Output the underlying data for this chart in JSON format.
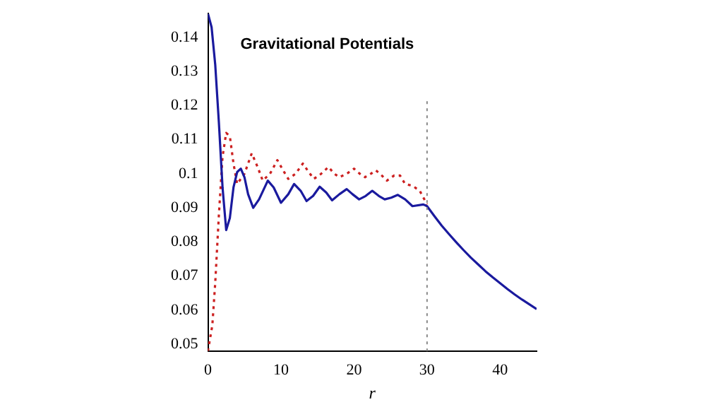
{
  "chart_data": {
    "type": "line",
    "title": "Gravitational Potentials",
    "xlabel": "r",
    "xlim": [
      0,
      45
    ],
    "ylim": [
      0.048,
      0.147
    ],
    "xticks": [
      0,
      10,
      20,
      30,
      40
    ],
    "yticks": [
      0.05,
      0.06,
      0.07,
      0.08,
      0.09,
      0.1,
      0.11,
      0.12,
      0.13,
      0.14
    ],
    "grid": false,
    "legend": false,
    "marker": "none",
    "series": [
      {
        "color": "#1a1a9e",
        "line_style": "solid",
        "x": [
          0,
          0.5,
          1,
          1.5,
          2,
          2.5,
          3,
          3.5,
          4,
          4.5,
          5,
          5.5,
          6.2,
          7,
          8.2,
          9,
          10,
          11,
          11.8,
          12.7,
          13.5,
          14.4,
          15.3,
          16.2,
          17,
          18,
          19,
          19.8,
          20.7,
          21.6,
          22.5,
          23.4,
          24.2,
          25.1,
          26,
          27,
          28,
          29.5,
          30,
          31,
          32,
          33,
          34,
          35,
          36,
          37,
          38,
          39,
          40,
          41,
          42,
          43,
          44,
          45
        ],
        "values": [
          0.147,
          0.143,
          0.132,
          0.115,
          0.096,
          0.0835,
          0.087,
          0.096,
          0.1005,
          0.1015,
          0.099,
          0.094,
          0.09,
          0.0925,
          0.098,
          0.096,
          0.0915,
          0.094,
          0.097,
          0.095,
          0.092,
          0.0935,
          0.0962,
          0.0945,
          0.0922,
          0.094,
          0.0955,
          0.094,
          0.0925,
          0.0935,
          0.095,
          0.0935,
          0.0925,
          0.093,
          0.0938,
          0.0925,
          0.0905,
          0.091,
          0.0905,
          0.0876,
          0.0848,
          0.0823,
          0.0799,
          0.0776,
          0.0754,
          0.0734,
          0.0714,
          0.0696,
          0.0679,
          0.0662,
          0.0646,
          0.0631,
          0.0617,
          0.0603
        ]
      },
      {
        "color": "#cc2020",
        "line_style": "dotted",
        "x": [
          0,
          0.6,
          1,
          1.5,
          2,
          2.5,
          3,
          3.5,
          4,
          5,
          6,
          6.8,
          7.5,
          8.5,
          9.5,
          10.3,
          11,
          12,
          13,
          13.8,
          14.5,
          15.5,
          16.5,
          17.3,
          18,
          19,
          20,
          20.8,
          21.5,
          22.3,
          23,
          23.8,
          24.5,
          25.5,
          26.3,
          27,
          28,
          29,
          30
        ],
        "values": [
          0.048,
          0.0555,
          0.068,
          0.088,
          0.105,
          0.112,
          0.111,
          0.103,
          0.097,
          0.1,
          0.106,
          0.102,
          0.098,
          0.1,
          0.104,
          0.101,
          0.0985,
          0.1,
          0.103,
          0.1005,
          0.0985,
          0.1,
          0.102,
          0.1,
          0.099,
          0.1,
          0.1015,
          0.1,
          0.099,
          0.1,
          0.101,
          0.0995,
          0.098,
          0.0995,
          0.0995,
          0.097,
          0.0965,
          0.095,
          0.091
        ]
      }
    ],
    "ref_lines": [
      {
        "axis": "x",
        "value": 30,
        "color": "#888888",
        "line_style": "dotted"
      }
    ]
  }
}
